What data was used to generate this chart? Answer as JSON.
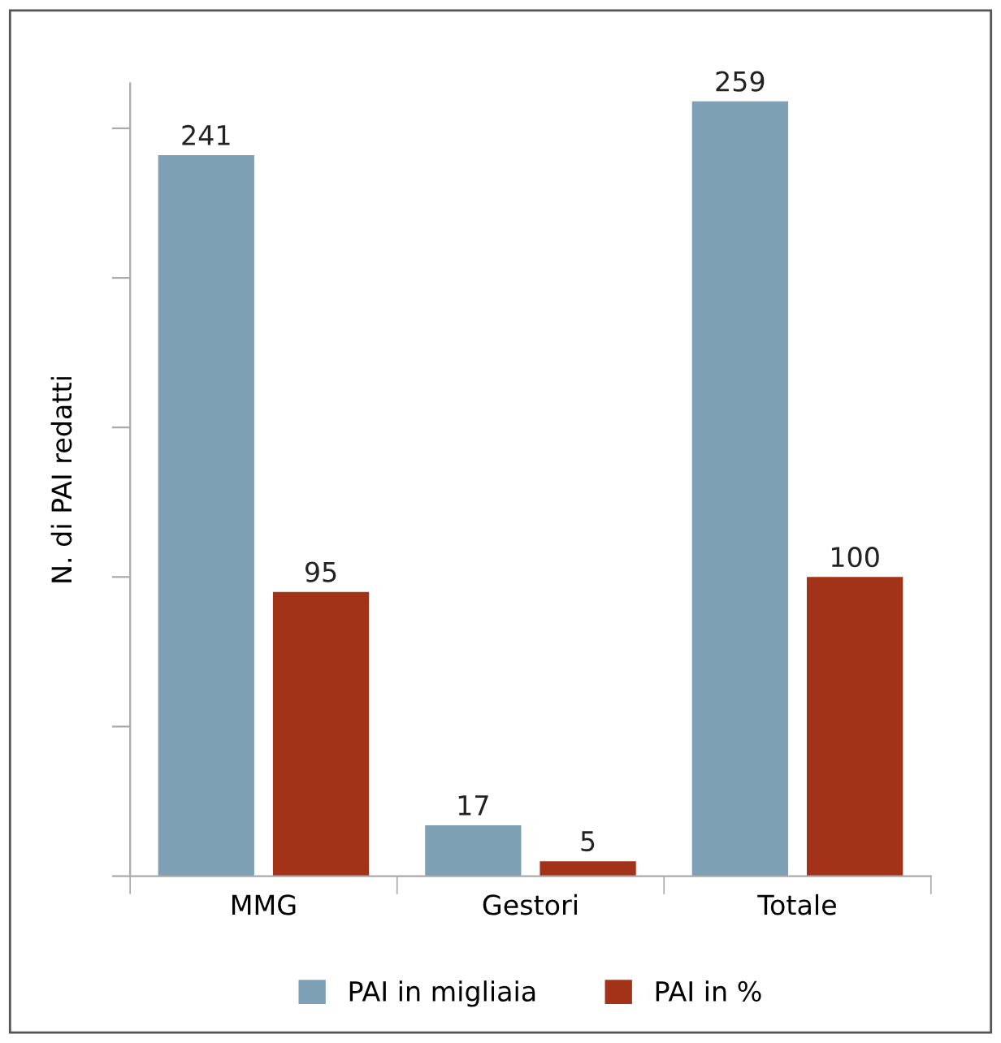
{
  "chart_data": {
    "type": "bar",
    "ylabel": "N. di PAI redatti",
    "categories": [
      "MMG",
      "Gestori",
      "Totale"
    ],
    "series": [
      {
        "name": "PAI in migliaia",
        "color": "#7da0b5",
        "values": [
          241,
          17,
          259
        ]
      },
      {
        "name": "PAI in %",
        "color": "#a33318",
        "values": [
          95,
          5,
          100
        ]
      }
    ],
    "ylim": [
      0,
      265
    ],
    "yticks": [
      {
        "value": 0,
        "label": null
      },
      {
        "value": 50,
        "label": null
      },
      {
        "value": 100,
        "label": null
      },
      {
        "value": 150,
        "label": null
      },
      {
        "value": 200,
        "label": null
      },
      {
        "value": 250,
        "label": null
      }
    ],
    "data_labels": true,
    "legend": "bottom",
    "grid": false
  }
}
